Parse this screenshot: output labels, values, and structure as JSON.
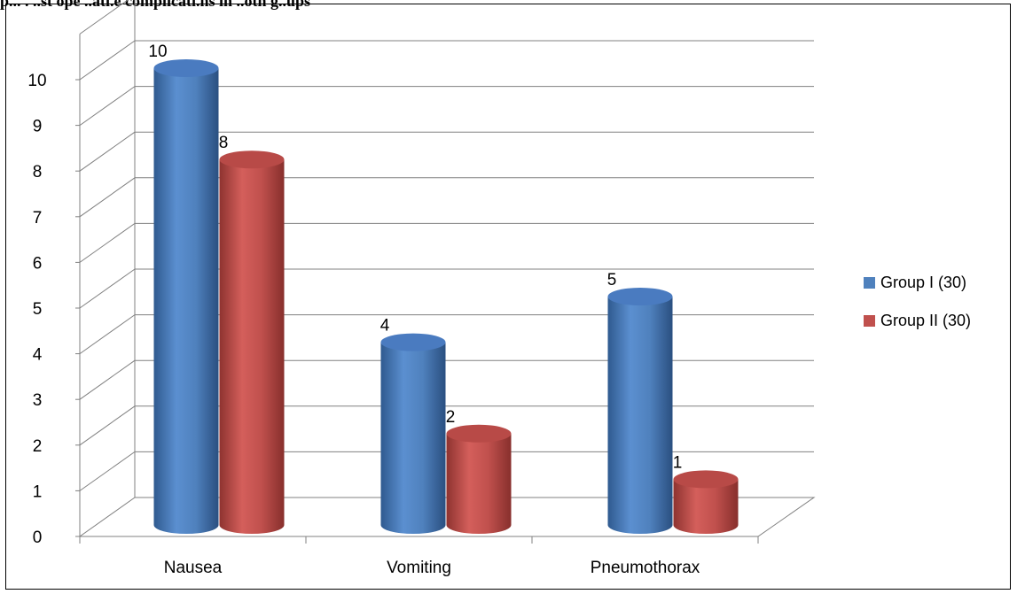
{
  "caption": "p... . ..st ope ..ati.e complicati.ns in ..oth g..ups",
  "colors": {
    "group1": "#4f81bd",
    "group2": "#c0504d",
    "grid": "#808080"
  },
  "chart_data": {
    "type": "bar",
    "title": "",
    "xlabel": "",
    "ylabel": "",
    "categories": [
      "Nausea",
      "Vomiting",
      "Pneumothorax"
    ],
    "ylim": [
      0,
      10
    ],
    "yticks": [
      "0",
      "1",
      "2",
      "3",
      "4",
      "5",
      "6",
      "7",
      "8",
      "9",
      "10"
    ],
    "grid": true,
    "legend_position": "right",
    "series": [
      {
        "name": "Group I (30)",
        "values": [
          10,
          4,
          5
        ],
        "color": "#4f81bd"
      },
      {
        "name": "Group II (30)",
        "values": [
          8,
          2,
          1
        ],
        "color": "#c0504d"
      }
    ]
  }
}
